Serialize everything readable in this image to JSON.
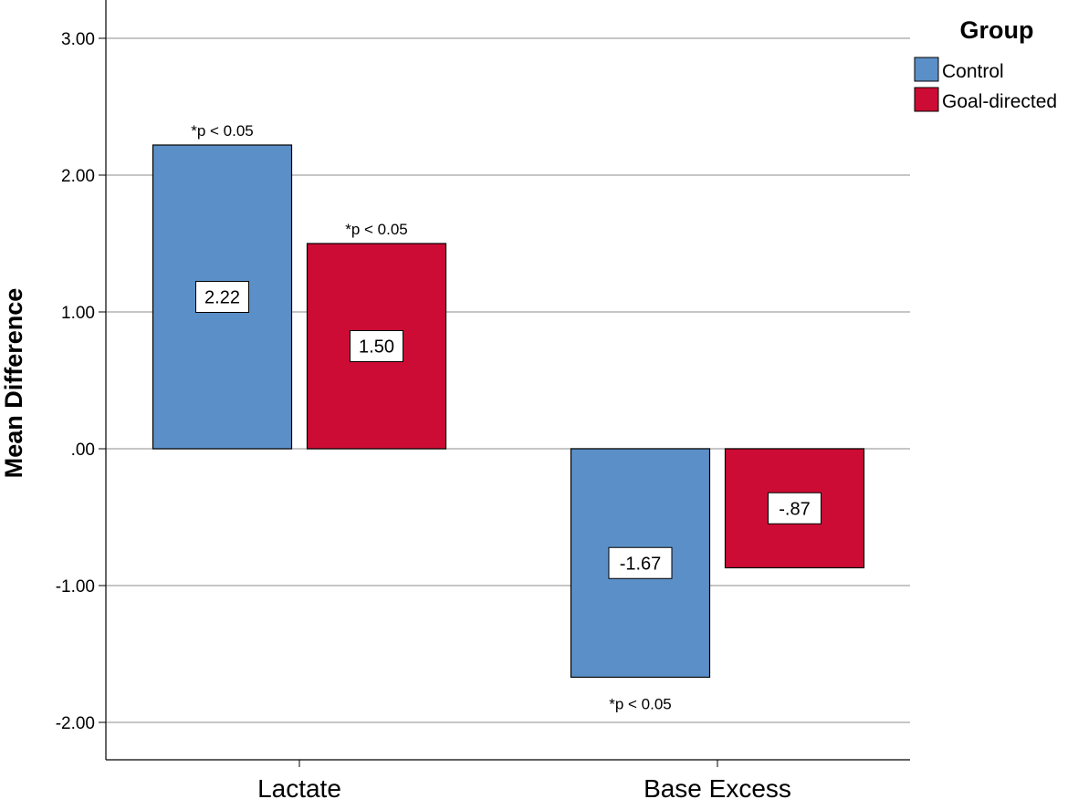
{
  "chart_data": {
    "type": "bar",
    "categories": [
      "Lactate",
      "Base Excess"
    ],
    "series": [
      {
        "name": "Control",
        "values": [
          2.22,
          -1.67
        ],
        "color": "#5b8fc7"
      },
      {
        "name": "Goal-directed",
        "values": [
          1.5,
          -0.87
        ],
        "color": "#cc0c34"
      }
    ],
    "value_labels": [
      [
        "2.22",
        "-1.67"
      ],
      [
        "1.50",
        "-.87"
      ]
    ],
    "annotations": [
      {
        "series": 0,
        "category": 0,
        "text": "*p < 0.05",
        "position": "above"
      },
      {
        "series": 1,
        "category": 0,
        "text": "*p < 0.05",
        "position": "above"
      },
      {
        "series": 0,
        "category": 1,
        "text": "*p < 0.05",
        "position": "below"
      }
    ],
    "ylabel": "Mean Difference",
    "xlabel": "",
    "ylim": [
      -2.28,
      3.3
    ],
    "yticks": [
      3,
      2,
      1,
      0,
      -1,
      -2
    ],
    "ytick_labels": [
      "3.00",
      "2.00",
      "1.00",
      ".00",
      "-1.00",
      "-2.00"
    ],
    "legend": {
      "title": "Group",
      "placement": "top-right"
    },
    "grid": true
  }
}
